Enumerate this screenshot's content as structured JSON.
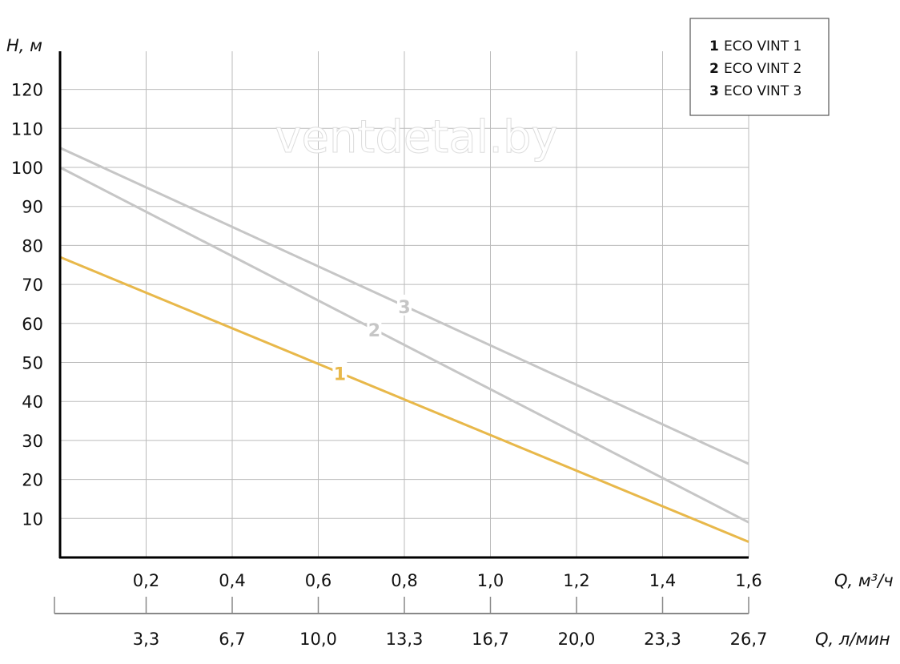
{
  "chart_data": {
    "type": "line",
    "ylabel": "H, м",
    "xlabel": "Q, м³/ч",
    "xlabel2": "Q, л/мин",
    "xlim": [
      0,
      1.6
    ],
    "ylim": [
      0,
      130
    ],
    "grid": true,
    "yticks": [
      "10",
      "20",
      "30",
      "40",
      "50",
      "60",
      "70",
      "80",
      "90",
      "100",
      "110",
      "120"
    ],
    "ytick_values": [
      10,
      20,
      30,
      40,
      50,
      60,
      70,
      80,
      90,
      100,
      110,
      120
    ],
    "xticks": [
      "0,2",
      "0,4",
      "0,6",
      "0,8",
      "1,0",
      "1,2",
      "1,4",
      "1,6"
    ],
    "xtick_values": [
      0.2,
      0.4,
      0.6,
      0.8,
      1.0,
      1.2,
      1.4,
      1.6
    ],
    "xticks2": [
      "3,3",
      "6,7",
      "10,0",
      "13,3",
      "16,7",
      "20,0",
      "23,3",
      "26,7"
    ],
    "legend_position": "top-right",
    "series": [
      {
        "name": "ECO VINT 1",
        "marker": "1",
        "color": "#e8b84a",
        "x": [
          0,
          1.6
        ],
        "y": [
          77,
          4
        ],
        "label_x": 0.65
      },
      {
        "name": "ECO VINT 2",
        "marker": "2",
        "color": "#c6c6c6",
        "x": [
          0,
          1.6
        ],
        "y": [
          100,
          9
        ],
        "label_x": 0.73
      },
      {
        "name": "ECO VINT 3",
        "marker": "3",
        "color": "#c6c6c6",
        "x": [
          0,
          1.6
        ],
        "y": [
          105,
          24
        ],
        "label_x": 0.8
      }
    ],
    "watermark": "ventdetal.by"
  }
}
